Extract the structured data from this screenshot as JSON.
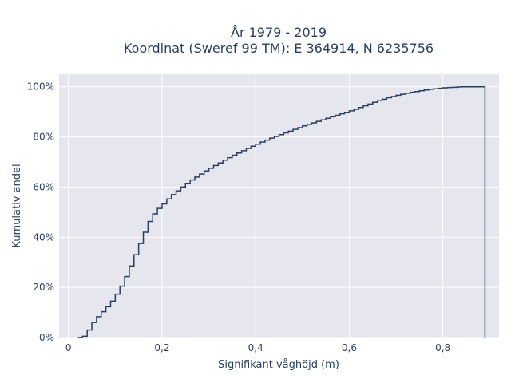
{
  "chart_data": {
    "type": "line",
    "subtype": "cumulative-step",
    "title_lines": [
      "År 1979 - 2019",
      "Koordinat (Sweref 99 TM): E 364914, N 6235756"
    ],
    "xlabel": "Signifikant våghöjd (m)",
    "ylabel": "Kumulativ andel",
    "xlim": [
      -0.02,
      0.92
    ],
    "ylim": [
      0,
      1.05
    ],
    "x_ticks": [
      0,
      0.2,
      0.4,
      0.6,
      0.8
    ],
    "x_tick_labels": [
      "0",
      "0,2",
      "0,4",
      "0,6",
      "0,8"
    ],
    "y_ticks": [
      0,
      0.2,
      0.4,
      0.6,
      0.8,
      1.0
    ],
    "y_tick_labels": [
      "0%",
      "20%",
      "40%",
      "60%",
      "80%",
      "100%"
    ],
    "grid": true,
    "bin_width": 0.01,
    "line_color": "#2a3f5f",
    "plot_bg": "#e5e6ee",
    "x": [
      0.02,
      0.03,
      0.04,
      0.05,
      0.06,
      0.07,
      0.08,
      0.09,
      0.1,
      0.11,
      0.12,
      0.13,
      0.14,
      0.15,
      0.16,
      0.17,
      0.18,
      0.19,
      0.2,
      0.21,
      0.22,
      0.23,
      0.24,
      0.25,
      0.26,
      0.27,
      0.28,
      0.29,
      0.3,
      0.31,
      0.32,
      0.33,
      0.34,
      0.35,
      0.36,
      0.37,
      0.38,
      0.39,
      0.4,
      0.41,
      0.42,
      0.43,
      0.44,
      0.45,
      0.46,
      0.47,
      0.48,
      0.49,
      0.5,
      0.51,
      0.52,
      0.53,
      0.54,
      0.55,
      0.56,
      0.57,
      0.58,
      0.59,
      0.6,
      0.61,
      0.62,
      0.63,
      0.64,
      0.65,
      0.66,
      0.67,
      0.68,
      0.69,
      0.7,
      0.71,
      0.72,
      0.73,
      0.74,
      0.75,
      0.76,
      0.77,
      0.78,
      0.79,
      0.8,
      0.81,
      0.82,
      0.83,
      0.84,
      0.85,
      0.86,
      0.87,
      0.88
    ],
    "y": [
      0.0,
      0.005,
      0.03,
      0.06,
      0.083,
      0.103,
      0.123,
      0.145,
      0.173,
      0.205,
      0.243,
      0.285,
      0.33,
      0.375,
      0.42,
      0.463,
      0.493,
      0.515,
      0.533,
      0.553,
      0.57,
      0.585,
      0.6,
      0.615,
      0.628,
      0.64,
      0.652,
      0.664,
      0.675,
      0.686,
      0.696,
      0.707,
      0.717,
      0.727,
      0.736,
      0.745,
      0.754,
      0.763,
      0.771,
      0.779,
      0.787,
      0.795,
      0.802,
      0.809,
      0.816,
      0.823,
      0.83,
      0.837,
      0.844,
      0.85,
      0.856,
      0.862,
      0.868,
      0.874,
      0.88,
      0.886,
      0.892,
      0.898,
      0.904,
      0.91,
      0.917,
      0.924,
      0.931,
      0.938,
      0.944,
      0.95,
      0.956,
      0.961,
      0.966,
      0.97,
      0.974,
      0.978,
      0.981,
      0.984,
      0.987,
      0.99,
      0.992,
      0.994,
      0.996,
      0.997,
      0.998,
      0.999,
      1.0,
      1.0,
      1.0,
      1.0,
      1.0
    ]
  }
}
